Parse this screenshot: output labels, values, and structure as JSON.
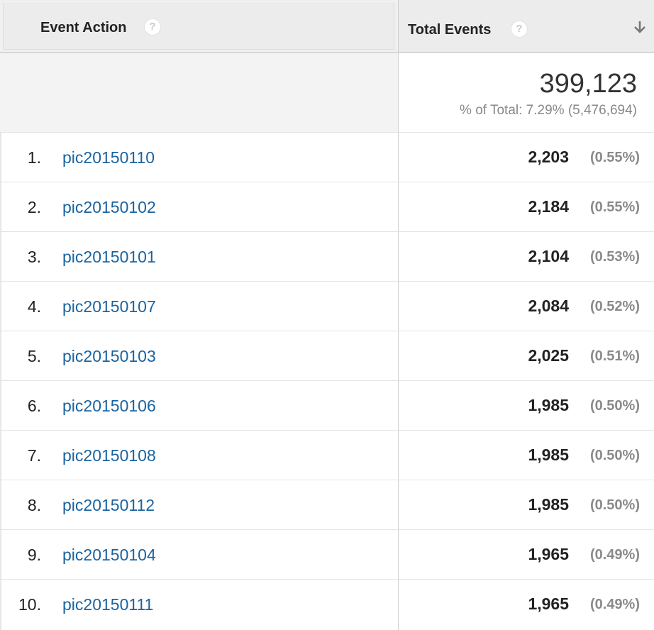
{
  "header": {
    "col_action": "Event Action",
    "col_events": "Total Events",
    "help_glyph": "?",
    "sort_icon": "arrow-down-icon"
  },
  "summary": {
    "total": "399,123",
    "pct_of_total": "% of Total: 7.29% (5,476,694)"
  },
  "rows": [
    {
      "index": "1.",
      "action": "pic20150110",
      "events": "2,203",
      "pct": "(0.55%)"
    },
    {
      "index": "2.",
      "action": "pic20150102",
      "events": "2,184",
      "pct": "(0.55%)"
    },
    {
      "index": "3.",
      "action": "pic20150101",
      "events": "2,104",
      "pct": "(0.53%)"
    },
    {
      "index": "4.",
      "action": "pic20150107",
      "events": "2,084",
      "pct": "(0.52%)"
    },
    {
      "index": "5.",
      "action": "pic20150103",
      "events": "2,025",
      "pct": "(0.51%)"
    },
    {
      "index": "6.",
      "action": "pic20150106",
      "events": "1,985",
      "pct": "(0.50%)"
    },
    {
      "index": "7.",
      "action": "pic20150108",
      "events": "1,985",
      "pct": "(0.50%)"
    },
    {
      "index": "8.",
      "action": "pic20150112",
      "events": "1,985",
      "pct": "(0.50%)"
    },
    {
      "index": "9.",
      "action": "pic20150104",
      "events": "1,965",
      "pct": "(0.49%)"
    },
    {
      "index": "10.",
      "action": "pic20150111",
      "events": "1,965",
      "pct": "(0.49%)"
    }
  ],
  "colors": {
    "link": "#1a63a0",
    "header_bg": "#ececec",
    "muted": "#888888"
  }
}
